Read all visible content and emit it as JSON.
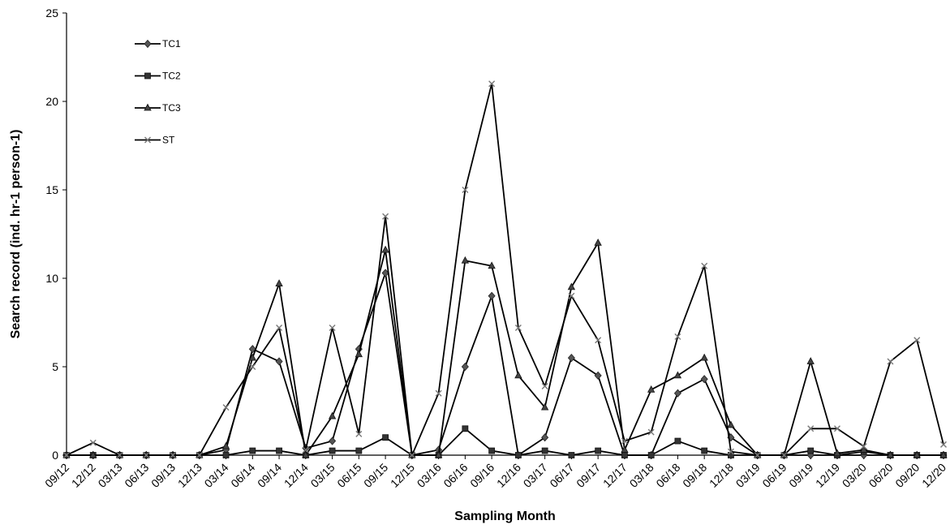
{
  "chart_data": {
    "type": "line",
    "xlabel": "Sampling Month",
    "ylabel": "Search record (ind. hr-1 person-1)",
    "ylim": [
      0,
      25
    ],
    "yticks": [
      0,
      5,
      10,
      15,
      20,
      25
    ],
    "grid": false,
    "legend_position": "top-left",
    "categories": [
      "09/12",
      "12/12",
      "03/13",
      "06/13",
      "09/13",
      "12/13",
      "03/14",
      "06/14",
      "09/14",
      "12/14",
      "03/15",
      "06/15",
      "09/15",
      "12/15",
      "03/16",
      "06/16",
      "09/16",
      "12/16",
      "03/17",
      "06/17",
      "09/17",
      "12/17",
      "03/18",
      "06/18",
      "09/18",
      "12/18",
      "03/19",
      "06/19",
      "09/19",
      "12/19",
      "03/20",
      "06/20",
      "09/20",
      "12/20"
    ],
    "series": [
      {
        "name": "TC1",
        "marker": "diamond",
        "values": [
          0,
          0,
          0,
          0,
          0,
          0,
          0.3,
          6.0,
          5.3,
          0.4,
          0.8,
          6.0,
          10.3,
          0,
          0.3,
          5.0,
          9.0,
          0,
          1.0,
          5.5,
          4.5,
          0,
          0,
          3.5,
          4.3,
          1.0,
          0,
          0,
          0,
          0,
          0,
          0,
          0,
          0
        ]
      },
      {
        "name": "TC2",
        "marker": "square",
        "values": [
          0,
          0,
          0,
          0,
          0,
          0,
          0,
          0.25,
          0.25,
          0,
          0.25,
          0.25,
          1.0,
          0,
          0,
          1.5,
          0.25,
          0,
          0.25,
          0,
          0.25,
          0,
          0,
          0.8,
          0.25,
          0,
          0,
          0,
          0.25,
          0,
          0.2,
          0,
          0,
          0
        ]
      },
      {
        "name": "TC3",
        "marker": "triangle",
        "values": [
          0,
          0,
          0,
          0,
          0,
          0,
          0.5,
          5.5,
          9.7,
          0,
          2.2,
          5.7,
          11.6,
          0,
          0,
          11.0,
          10.7,
          4.5,
          2.7,
          9.5,
          12.0,
          0.3,
          3.7,
          4.5,
          5.5,
          1.7,
          0,
          0,
          5.3,
          0.1,
          0.3,
          0,
          0,
          0
        ]
      },
      {
        "name": "ST",
        "marker": "x",
        "values": [
          0,
          0.7,
          0,
          0,
          0,
          0,
          2.7,
          5.0,
          7.2,
          0.3,
          7.2,
          1.2,
          13.5,
          0,
          3.5,
          15.0,
          21.0,
          7.2,
          3.9,
          9.0,
          6.5,
          0.8,
          1.3,
          6.7,
          10.7,
          0.2,
          0,
          0,
          1.5,
          1.5,
          0.5,
          5.3,
          6.5,
          0.6
        ]
      }
    ]
  }
}
